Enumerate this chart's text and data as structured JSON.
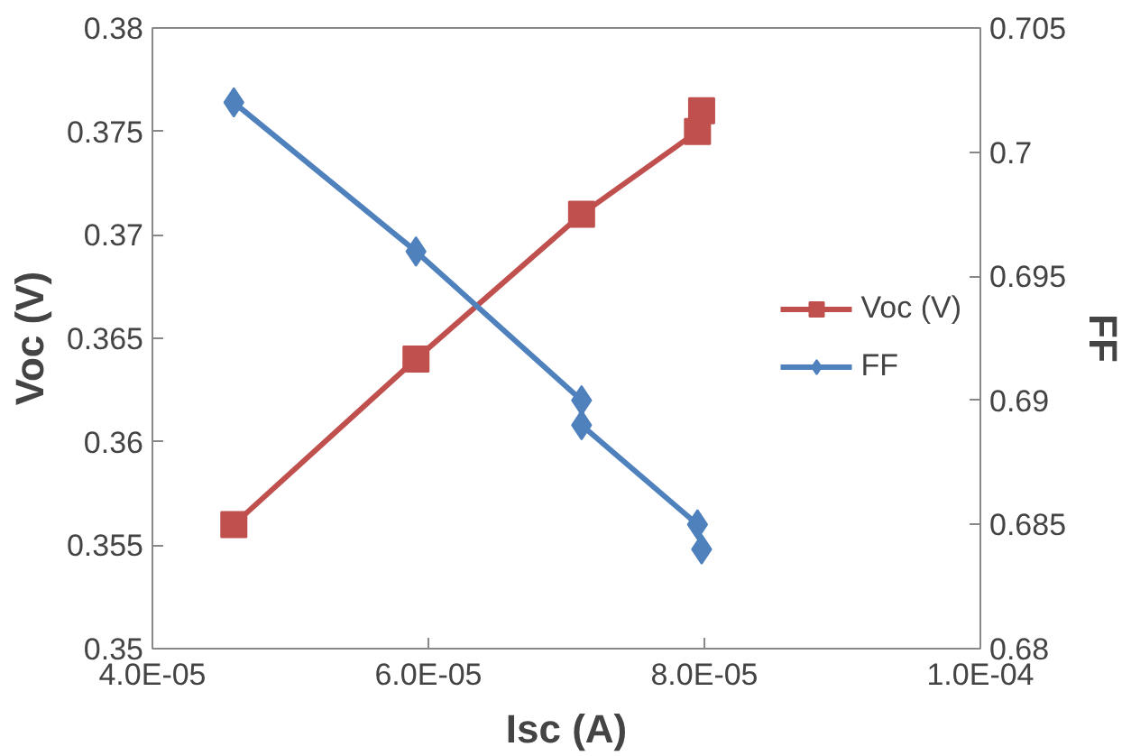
{
  "chart_data": {
    "type": "line",
    "xlabel": "Isc (A)",
    "ylabel": "Voc (V)",
    "y2label": "FF",
    "xlim": [
      4e-05,
      0.0001
    ],
    "xticks": [
      {
        "value": 4e-05,
        "label": "4.0E-05"
      },
      {
        "value": 6e-05,
        "label": "6.0E-05"
      },
      {
        "value": 8e-05,
        "label": "8.0E-05"
      },
      {
        "value": 0.0001,
        "label": "1.0E-04"
      }
    ],
    "ylim": [
      0.35,
      0.38
    ],
    "yticks": [
      0.35,
      0.355,
      0.36,
      0.365,
      0.37,
      0.375,
      0.38
    ],
    "y2lim": [
      0.68,
      0.705
    ],
    "y2ticks": [
      0.68,
      0.685,
      0.69,
      0.695,
      0.7,
      0.705
    ],
    "series": [
      {
        "name": "Voc (V)",
        "color": "#c0504d",
        "marker": "square",
        "x": [
          4.59e-05,
          5.91e-05,
          7.11e-05,
          7.95e-05,
          7.98e-05
        ],
        "values": [
          0.356,
          0.364,
          0.371,
          0.375,
          0.376
        ]
      },
      {
        "name": "FF",
        "color": "#4f81bd",
        "marker": "diamond",
        "axis": "y2",
        "x": [
          4.59e-05,
          5.91e-05,
          7.11e-05,
          7.11e-05,
          7.95e-05,
          7.98e-05
        ],
        "values": [
          0.702,
          0.696,
          0.69,
          0.689,
          0.685,
          0.684
        ]
      }
    ],
    "legend": "right",
    "grid": false
  }
}
